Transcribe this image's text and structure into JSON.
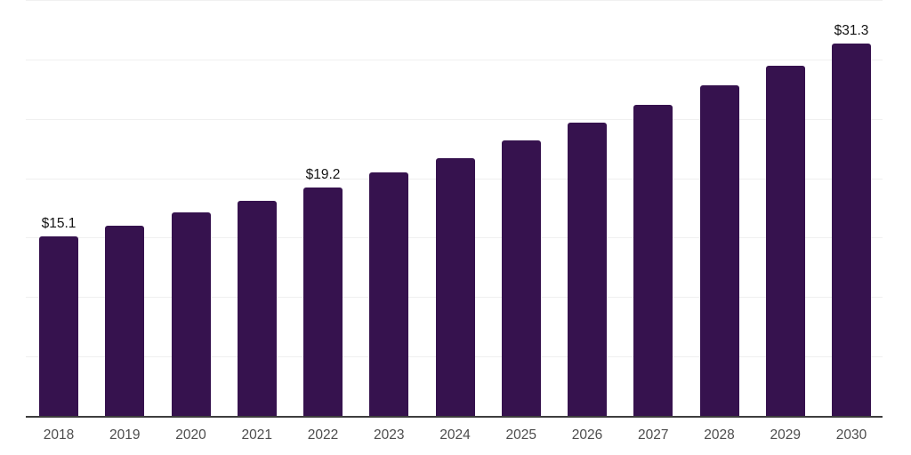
{
  "chart_data": {
    "type": "bar",
    "title": "",
    "xlabel": "",
    "ylabel": "",
    "categories": [
      "2018",
      "2019",
      "2020",
      "2021",
      "2022",
      "2023",
      "2024",
      "2025",
      "2026",
      "2027",
      "2028",
      "2029",
      "2030"
    ],
    "values": [
      15.1,
      16.0,
      17.1,
      18.1,
      19.2,
      20.5,
      21.7,
      23.2,
      24.7,
      26.2,
      27.8,
      29.5,
      31.3
    ],
    "annotations": [
      {
        "index": 0,
        "text": "$15.1"
      },
      {
        "index": 4,
        "text": "$19.2"
      },
      {
        "index": 12,
        "text": "$31.3"
      }
    ],
    "ylim": [
      0,
      35
    ],
    "grid_step": 5,
    "grid": true,
    "legend": false,
    "colors": {
      "bar": "#36124E",
      "gridline": "#f0f0f0",
      "axis": "#3d3d3d",
      "value_label": "#141414",
      "tick_label": "#4d4d4d",
      "background": "#ffffff"
    }
  }
}
